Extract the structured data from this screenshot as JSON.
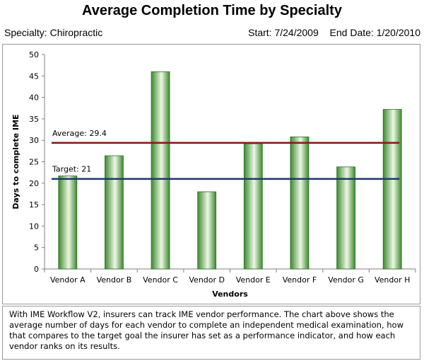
{
  "title": "Average Completion Time by Specialty",
  "specialty": {
    "label": "Specialty:",
    "value": "Chiropractic"
  },
  "date_range": {
    "start_label": "Start:",
    "start_value": "7/24/2009",
    "end_label": "End Date:",
    "end_value": "1/20/2010"
  },
  "caption": "With IME Workflow V2, insurers can track IME vendor performance. The chart above shows the average number of days for each vendor to complete an independent medical examination, how that compares to the target goal the insurer has set as a performance indicator, and how each vendor ranks on its results.",
  "colors": {
    "bar_dark": "#3c8a2e",
    "bar_light": "#eef7e6",
    "average_line": "#8b1a1a",
    "target_line": "#1f3a6b"
  },
  "chart_data": {
    "type": "bar",
    "categories": [
      "Vendor A",
      "Vendor B",
      "Vendor C",
      "Vendor D",
      "Vendor E",
      "Vendor F",
      "Vendor G",
      "Vendor H"
    ],
    "values": [
      21.7,
      26.4,
      46.0,
      18.0,
      29.2,
      30.8,
      23.8,
      37.2
    ],
    "xlabel": "Vendors",
    "ylabel": "Days to complete IME",
    "ylim": [
      0,
      50
    ],
    "yticks": [
      0,
      5,
      10,
      15,
      20,
      25,
      30,
      35,
      40,
      45,
      50
    ],
    "grid": false,
    "legend": "none",
    "reference_lines": [
      {
        "label": "Average: 29.4",
        "value": 29.4,
        "color": "#8b1a1a"
      },
      {
        "label": "Target: 21",
        "value": 21,
        "color": "#1f3a6b"
      }
    ]
  }
}
